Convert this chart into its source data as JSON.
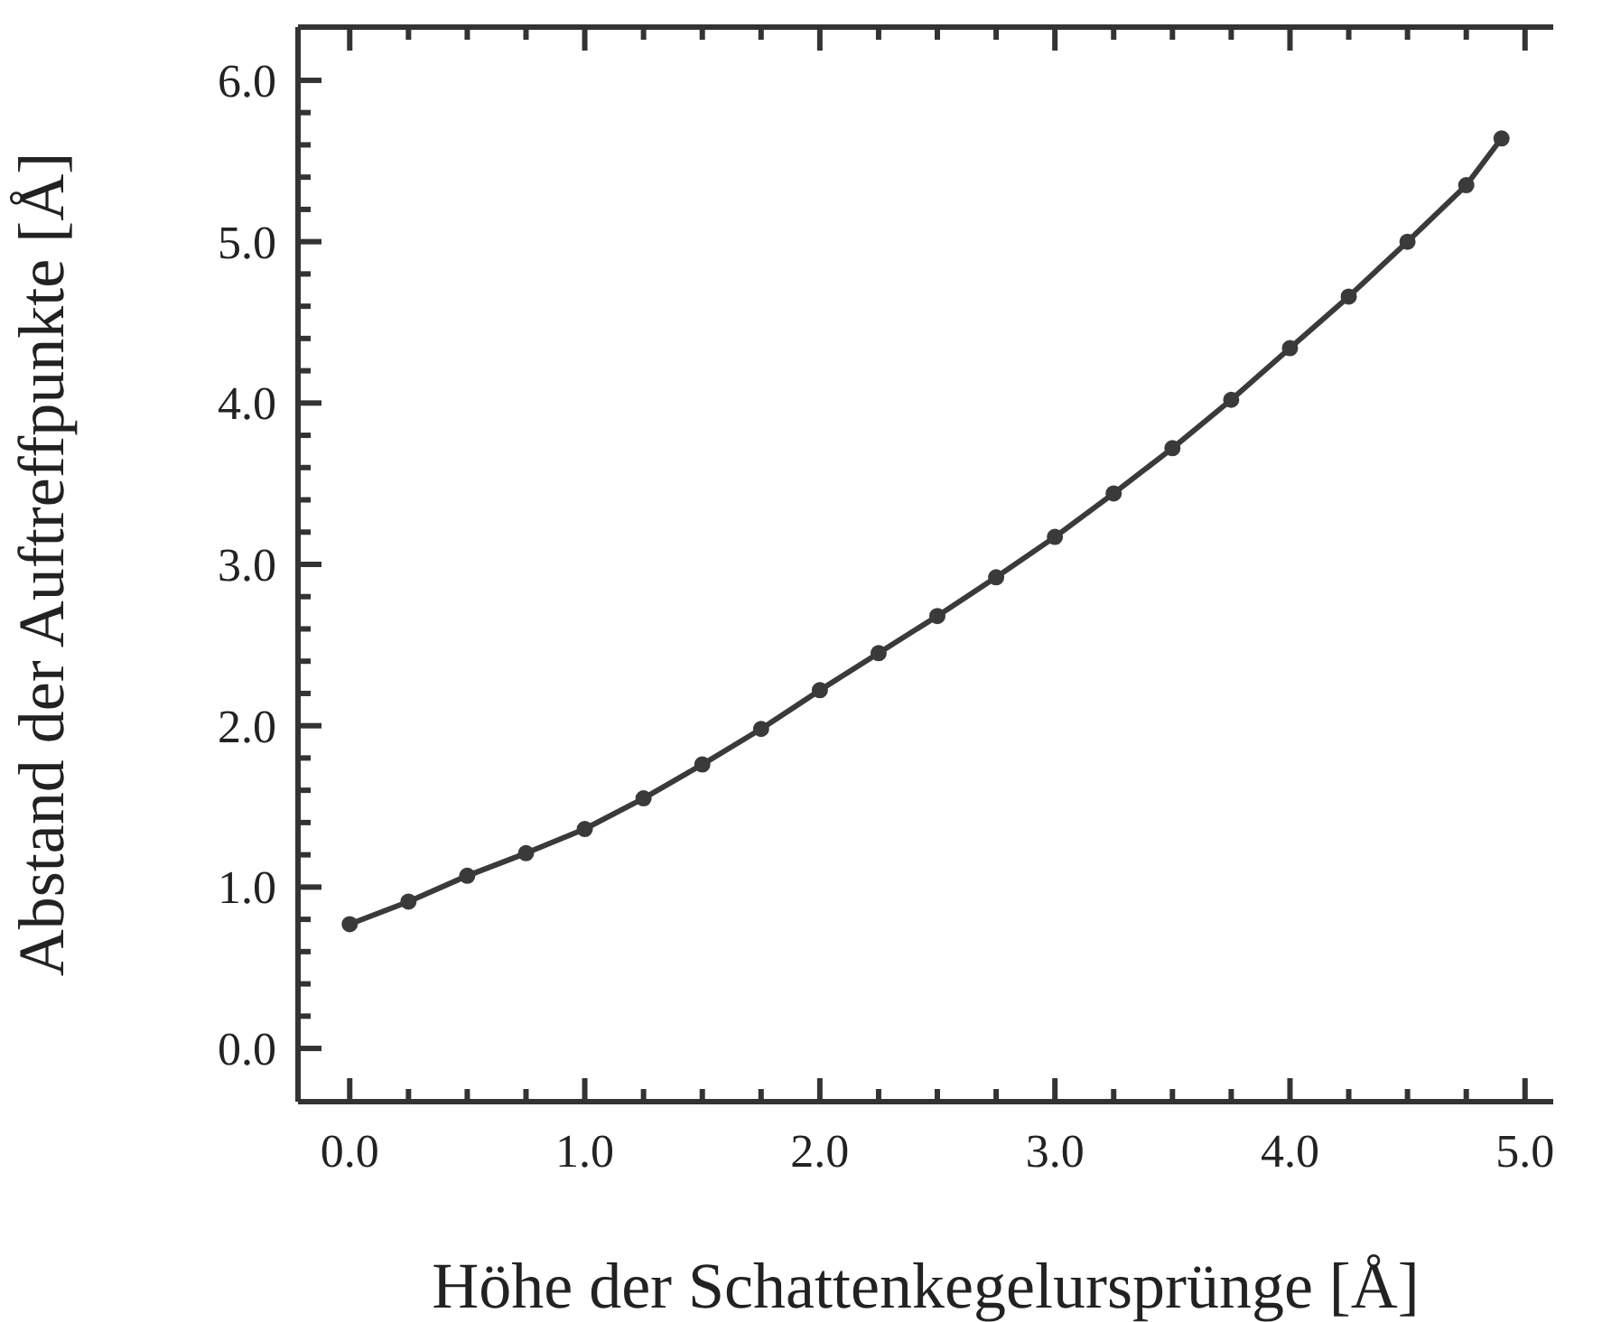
{
  "chart_data": {
    "type": "line",
    "xlabel": "Höhe der Schattenkegelursprünge [Å]",
    "ylabel": "Abstand der Auftreffpunkte [Å]",
    "x": [
      0,
      0.25,
      0.5,
      0.75,
      1,
      1.25,
      1.5,
      1.75,
      2,
      2.25,
      2.5,
      2.75,
      3,
      3.25,
      3.5,
      3.75,
      4,
      4.25,
      4.5,
      4.75,
      4.9
    ],
    "series": [
      {
        "color": "#3a3a3a",
        "values": [
          0.77,
          0.91,
          1.07,
          1.21,
          1.36,
          1.55,
          1.76,
          1.98,
          2.22,
          2.45,
          2.68,
          2.92,
          3.17,
          3.44,
          3.72,
          4.02,
          4.34,
          4.66,
          5.0,
          5.35,
          5.64
        ]
      }
    ],
    "xlim": [
      -0.22,
      5.12
    ],
    "ylim": [
      -0.33,
      6.33
    ],
    "xticks": [
      {
        "value": 0,
        "label": "0.0"
      },
      {
        "value": 0.25,
        "label": null
      },
      {
        "value": 0.5,
        "label": null
      },
      {
        "value": 0.75,
        "label": null
      },
      {
        "value": 1,
        "label": "1.0"
      },
      {
        "value": 1.25,
        "label": null
      },
      {
        "value": 1.5,
        "label": null
      },
      {
        "value": 1.75,
        "label": null
      },
      {
        "value": 2,
        "label": "2.0"
      },
      {
        "value": 2.25,
        "label": null
      },
      {
        "value": 2.5,
        "label": null
      },
      {
        "value": 2.75,
        "label": null
      },
      {
        "value": 3,
        "label": "3.0"
      },
      {
        "value": 3.25,
        "label": null
      },
      {
        "value": 3.5,
        "label": null
      },
      {
        "value": 3.75,
        "label": null
      },
      {
        "value": 4,
        "label": "4.0"
      },
      {
        "value": 4.25,
        "label": null
      },
      {
        "value": 4.5,
        "label": null
      },
      {
        "value": 4.75,
        "label": null
      },
      {
        "value": 5,
        "label": "5.0"
      }
    ],
    "yticks": [
      {
        "value": 0,
        "label": "0.0"
      },
      {
        "value": 0.2,
        "label": null
      },
      {
        "value": 0.4,
        "label": null
      },
      {
        "value": 0.6,
        "label": null
      },
      {
        "value": 0.8,
        "label": null
      },
      {
        "value": 1,
        "label": "1.0"
      },
      {
        "value": 1.2,
        "label": null
      },
      {
        "value": 1.4,
        "label": null
      },
      {
        "value": 1.6,
        "label": null
      },
      {
        "value": 1.8,
        "label": null
      },
      {
        "value": 2,
        "label": "2.0"
      },
      {
        "value": 2.2,
        "label": null
      },
      {
        "value": 2.4,
        "label": null
      },
      {
        "value": 2.6,
        "label": null
      },
      {
        "value": 2.8,
        "label": null
      },
      {
        "value": 3,
        "label": "3.0"
      },
      {
        "value": 3.2,
        "label": null
      },
      {
        "value": 3.4,
        "label": null
      },
      {
        "value": 3.6,
        "label": null
      },
      {
        "value": 3.8,
        "label": null
      },
      {
        "value": 4,
        "label": "4.0"
      },
      {
        "value": 4.2,
        "label": null
      },
      {
        "value": 4.4,
        "label": null
      },
      {
        "value": 4.6,
        "label": null
      },
      {
        "value": 4.8,
        "label": null
      },
      {
        "value": 5,
        "label": "5.0"
      },
      {
        "value": 5.2,
        "label": null
      },
      {
        "value": 5.4,
        "label": null
      },
      {
        "value": 5.6,
        "label": null
      },
      {
        "value": 5.8,
        "label": null
      },
      {
        "value": 6,
        "label": "6.0"
      }
    ],
    "marker": "circle",
    "grid": false,
    "legend": false
  }
}
